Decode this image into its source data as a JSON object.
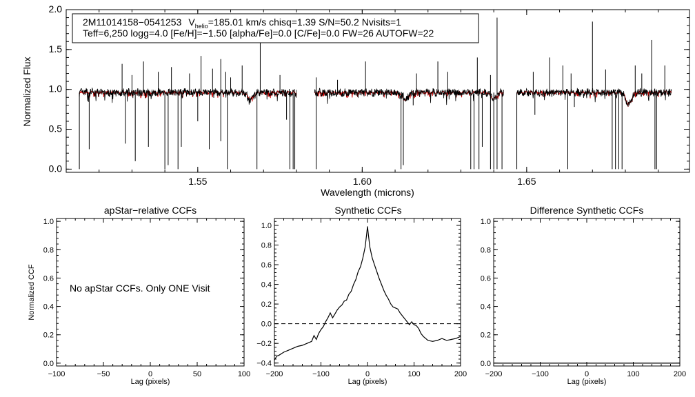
{
  "chart_data": [
    {
      "type": "line",
      "name": "spectrum",
      "xlabel": "Wavelength (microns)",
      "ylabel": "Normalized Flux",
      "xlim": [
        1.51,
        1.6995
      ],
      "ylim": [
        -0.04,
        2.0
      ],
      "xticks": [
        1.55,
        1.6,
        1.65
      ],
      "xtick_labels": [
        "1.55",
        "1.60",
        "1.65"
      ],
      "yticks": [
        0.0,
        0.5,
        1.0,
        1.5,
        2.0
      ],
      "ytick_labels": [
        "0.0",
        "0.5",
        "1.0",
        "1.5",
        "2.0"
      ],
      "info_line1": {
        "star": "2M11014158−0541253",
        "vhelio_prefix": "V",
        "vhelio_sub": "helio",
        "vhelio_rest": "=185.01 km/s  chisq=1.39  S/N=50.2  Nvisits=1"
      },
      "info_line2": "Teff=6,250 logg=4.0 [Fe/H]=−1.50 [alpha/Fe]=0.0 [C/Fe]=0.0 FW=26 AUTOFW=22",
      "chips": [
        [
          1.514,
          1.58
        ],
        [
          1.5855,
          1.643
        ],
        [
          1.647,
          1.694
        ]
      ],
      "continuum": 0.96,
      "series": [
        {
          "name": "observed",
          "color": "#000000"
        },
        {
          "name": "synthetic model",
          "color": "#cc0000"
        }
      ],
      "emission_lines": [
        [
          1.527,
          1.32
        ],
        [
          1.53,
          1.18
        ],
        [
          1.5335,
          1.35
        ],
        [
          1.538,
          1.22
        ],
        [
          1.542,
          1.28
        ],
        [
          1.5475,
          1.2
        ],
        [
          1.551,
          1.42
        ],
        [
          1.5545,
          1.26
        ],
        [
          1.557,
          1.38
        ],
        [
          1.5585,
          1.22
        ],
        [
          1.56,
          1.15
        ],
        [
          1.5635,
          1.3
        ],
        [
          1.569,
          1.7
        ],
        [
          1.575,
          1.18
        ],
        [
          1.586,
          1.15
        ],
        [
          1.5925,
          1.12
        ],
        [
          1.601,
          1.35
        ],
        [
          1.6165,
          1.2
        ],
        [
          1.623,
          1.35
        ],
        [
          1.626,
          1.22
        ],
        [
          1.635,
          1.4
        ],
        [
          1.639,
          1.18
        ],
        [
          1.641,
          1.9
        ],
        [
          1.652,
          1.22
        ],
        [
          1.657,
          1.4
        ],
        [
          1.661,
          1.3
        ],
        [
          1.6635,
          1.2
        ],
        [
          1.67,
          1.85
        ],
        [
          1.674,
          1.25
        ],
        [
          1.683,
          1.3
        ],
        [
          1.685,
          1.2
        ],
        [
          1.688,
          1.62
        ],
        [
          1.692,
          1.3
        ]
      ],
      "absorption_lines": [
        [
          1.514,
          0.0
        ],
        [
          1.517,
          0.25
        ],
        [
          1.528,
          0.32
        ],
        [
          1.531,
          0.1
        ],
        [
          1.535,
          0.28
        ],
        [
          1.54,
          0.0
        ],
        [
          1.541,
          0.05
        ],
        [
          1.544,
          0.0
        ],
        [
          1.545,
          0.28
        ],
        [
          1.55,
          0.6
        ],
        [
          1.5535,
          0.25
        ],
        [
          1.557,
          0.35
        ],
        [
          1.559,
          0.0
        ],
        [
          1.568,
          0.0
        ],
        [
          1.577,
          0.62
        ],
        [
          1.578,
          0.0
        ],
        [
          1.579,
          0.0
        ],
        [
          1.5795,
          0.0
        ],
        [
          1.586,
          0.0
        ],
        [
          1.6118,
          0.0
        ],
        [
          1.6125,
          0.05
        ],
        [
          1.6155,
          0.8
        ],
        [
          1.633,
          0.0
        ],
        [
          1.634,
          0.0
        ],
        [
          1.6355,
          0.0
        ],
        [
          1.6365,
          0.28
        ],
        [
          1.639,
          0.0
        ],
        [
          1.64,
          0.0
        ],
        [
          1.641,
          0.0
        ],
        [
          1.6425,
          0.0
        ],
        [
          1.647,
          0.0
        ],
        [
          1.6525,
          0.68
        ],
        [
          1.6625,
          0.0
        ],
        [
          1.6645,
          0.78
        ],
        [
          1.676,
          0.0
        ],
        [
          1.677,
          0.0
        ],
        [
          1.678,
          0.0
        ],
        [
          1.679,
          0.0
        ],
        [
          1.689,
          0.0
        ],
        [
          1.6895,
          0.0
        ]
      ],
      "broad_features": [
        [
          1.566,
          0.88
        ],
        [
          1.613,
          0.87
        ],
        [
          1.64,
          0.88
        ],
        [
          1.681,
          0.82
        ]
      ]
    },
    {
      "type": "line",
      "name": "apstar-relative-ccf",
      "title": "apStar−relative CCFs",
      "ylabel": "Normalized CCF",
      "xlabel": "Lag (pixels)",
      "xlim": [
        -100,
        100
      ],
      "ylim": [
        -0.02,
        1.02
      ],
      "xticks": [
        -100,
        -50,
        0,
        50,
        100
      ],
      "xtick_labels": [
        "−100",
        "−50",
        "0",
        "50",
        "100"
      ],
      "yticks": [
        0.0,
        0.2,
        0.4,
        0.6,
        0.8,
        1.0
      ],
      "ytick_labels": [
        "0.0",
        "0.2",
        "0.4",
        "0.6",
        "0.8",
        "1.0"
      ],
      "note": "No apStar CCFs.  Only ONE Visit",
      "series": []
    },
    {
      "type": "line",
      "name": "synthetic-ccf",
      "title": "Synthetic CCFs",
      "xlabel": "Lag (pixels)",
      "xlim": [
        -200,
        200
      ],
      "ylim": [
        -0.43,
        1.07
      ],
      "xticks": [
        -200,
        -100,
        0,
        100,
        200
      ],
      "xtick_labels": [
        "−200",
        "−100",
        "0",
        "100",
        "200"
      ],
      "yticks": [
        -0.4,
        -0.2,
        0.0,
        0.2,
        0.4,
        0.6,
        0.8,
        1.0
      ],
      "ytick_labels": [
        "−0.4",
        "−0.2",
        "0.0",
        "0.2",
        "0.4",
        "0.6",
        "0.8",
        "1.0"
      ],
      "zero_line": 0.0,
      "series": [
        {
          "name": "ccf",
          "x": [
            -200,
            -195,
            -190,
            -180,
            -170,
            -160,
            -150,
            -140,
            -130,
            -120,
            -115,
            -110,
            -105,
            -100,
            -95,
            -90,
            -85,
            -80,
            -75,
            -70,
            -65,
            -60,
            -55,
            -50,
            -45,
            -40,
            -35,
            -30,
            -25,
            -20,
            -15,
            -10,
            -5,
            -2,
            0,
            2,
            5,
            10,
            15,
            20,
            25,
            30,
            35,
            40,
            45,
            50,
            55,
            60,
            65,
            70,
            75,
            80,
            85,
            90,
            95,
            100,
            105,
            110,
            115,
            120,
            130,
            140,
            150,
            160,
            170,
            180,
            190,
            200
          ],
          "values": [
            -0.37,
            -0.33,
            -0.32,
            -0.29,
            -0.27,
            -0.25,
            -0.23,
            -0.22,
            -0.2,
            -0.18,
            -0.12,
            -0.16,
            -0.1,
            -0.06,
            -0.03,
            0.02,
            0.06,
            0.11,
            0.06,
            0.1,
            0.14,
            0.17,
            0.19,
            0.23,
            0.24,
            0.3,
            0.33,
            0.4,
            0.45,
            0.53,
            0.58,
            0.67,
            0.78,
            0.9,
            0.99,
            0.9,
            0.78,
            0.67,
            0.6,
            0.53,
            0.46,
            0.4,
            0.34,
            0.29,
            0.25,
            0.2,
            0.17,
            0.16,
            0.15,
            0.11,
            0.08,
            0.05,
            0.02,
            -0.01,
            0.02,
            -0.01,
            -0.02,
            -0.05,
            -0.1,
            -0.13,
            -0.17,
            -0.18,
            -0.17,
            -0.15,
            -0.17,
            -0.16,
            -0.15,
            -0.13
          ]
        }
      ]
    },
    {
      "type": "line",
      "name": "difference-synthetic-ccf",
      "title": "Difference Synthetic CCFs",
      "xlabel": "Lag (pixels)",
      "xlim": [
        -200,
        200
      ],
      "ylim": [
        -0.02,
        1.02
      ],
      "xticks": [
        -200,
        -100,
        0,
        100,
        200
      ],
      "xtick_labels": [
        "−200",
        "−100",
        "0",
        "100",
        "200"
      ],
      "yticks": [
        0.0,
        0.2,
        0.4,
        0.6,
        0.8,
        1.0
      ],
      "ytick_labels": [
        "0.0",
        "0.2",
        "0.4",
        "0.6",
        "0.8",
        "1.0"
      ],
      "series": [
        {
          "name": "difference",
          "x": [
            -200,
            200
          ],
          "values": [
            0.0,
            0.0
          ]
        }
      ]
    }
  ]
}
